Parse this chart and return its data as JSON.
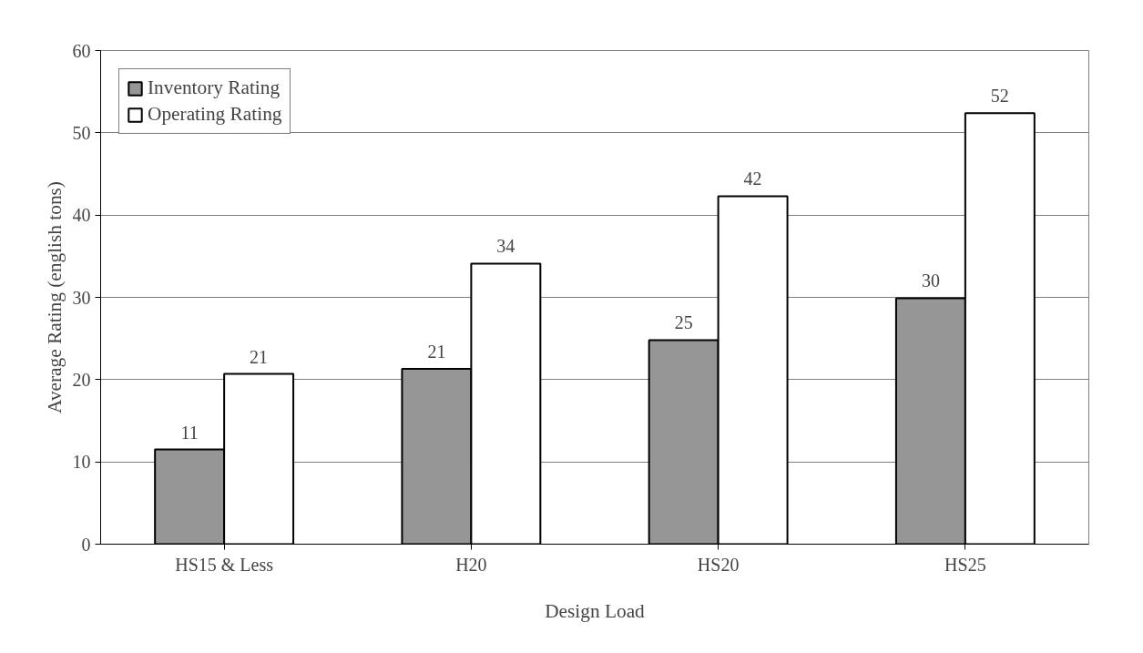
{
  "chart_data": {
    "type": "bar",
    "xlabel": "Design Load",
    "ylabel": "Average Rating (english tons)",
    "categories": [
      "HS15 & Less",
      "H20",
      "HS20",
      "HS25"
    ],
    "series": [
      {
        "name": "Inventory Rating",
        "color": "#969696",
        "values": [
          11.5,
          21.3,
          24.8,
          29.9
        ],
        "value_labels": [
          "11",
          "21",
          "25",
          "30"
        ]
      },
      {
        "name": "Operating Rating",
        "color": "#ffffff",
        "values": [
          20.7,
          34.1,
          42.3,
          52.4
        ],
        "value_labels": [
          "21",
          "34",
          "42",
          "52"
        ]
      }
    ],
    "ylim": [
      0,
      60
    ],
    "yticks": [
      0,
      10,
      20,
      30,
      40,
      50,
      60
    ],
    "grid": "y",
    "legend": "top left"
  }
}
